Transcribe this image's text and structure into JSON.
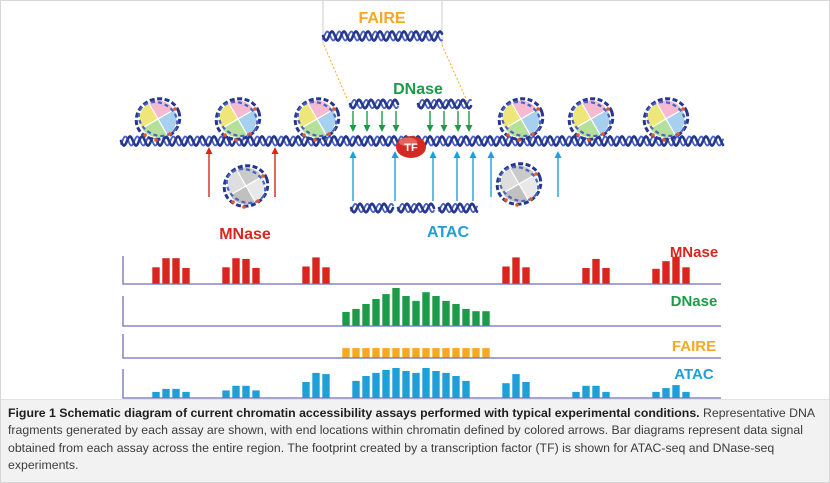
{
  "diagram": {
    "faire_label": "FAIRE",
    "dnase_label": "DNase",
    "mnase_label": "MNase",
    "atac_label": "ATAC",
    "tf_label": "TF"
  },
  "colors": {
    "dna": "#26378e",
    "dna_light": "#4a62c2",
    "tf": "#d42a1f",
    "axis": "#6f6fb6",
    "connector": "#f7a823",
    "histone": [
      "#efe67a",
      "#f5b9d0",
      "#a7cfee",
      "#b5e09c"
    ],
    "evicted_histone": [
      "#dedede",
      "#cacaca",
      "#e8e8e8",
      "#c0c0c0"
    ],
    "histone_dots": "#e3582d"
  },
  "chart_data": {
    "type": "bar",
    "xlim": [
      0,
      59
    ],
    "ylim": [
      0,
      10
    ],
    "grid": false,
    "legend": "right",
    "series": [
      {
        "name": "MNase",
        "color": "#d9251d",
        "x": [
          3,
          4,
          5,
          6,
          10,
          11,
          12,
          13,
          18,
          19,
          20,
          38,
          39,
          40,
          46,
          47,
          48,
          53,
          54,
          55,
          56
        ],
        "values": [
          4.4,
          6.8,
          6.8,
          4.2,
          4.4,
          6.8,
          6.6,
          4.2,
          4.6,
          7.0,
          4.4,
          4.6,
          7.0,
          4.4,
          4.2,
          6.6,
          4.2,
          4.0,
          6.0,
          7.2,
          4.4
        ]
      },
      {
        "name": "DNase",
        "color": "#1c9c48",
        "x": [
          22,
          23,
          24,
          25,
          26,
          27,
          28,
          29,
          30,
          31,
          32,
          33,
          34,
          35,
          36
        ],
        "values": [
          3.7,
          4.5,
          5.8,
          7.1,
          8.4,
          10.0,
          7.9,
          6.6,
          8.9,
          7.9,
          6.6,
          5.8,
          4.5,
          3.9,
          3.9
        ]
      },
      {
        "name": "FAIRE",
        "color": "#f7a823",
        "x": [
          22,
          23,
          24,
          25,
          26,
          27,
          28,
          29,
          30,
          31,
          32,
          33,
          34,
          35,
          36
        ],
        "values": [
          2.6,
          2.6,
          2.6,
          2.6,
          2.6,
          2.6,
          2.6,
          2.6,
          2.6,
          2.6,
          2.6,
          2.6,
          2.6,
          2.6,
          2.6
        ]
      },
      {
        "name": "ATAC",
        "color": "#1f9fd8",
        "x": [
          3,
          4,
          5,
          6,
          10,
          11,
          12,
          13,
          18,
          19,
          20,
          23,
          24,
          25,
          26,
          27,
          28,
          29,
          30,
          31,
          32,
          33,
          34,
          38,
          39,
          40,
          45,
          46,
          47,
          48,
          53,
          54,
          55,
          56
        ],
        "values": [
          1.6,
          2.4,
          2.4,
          1.6,
          2.0,
          3.2,
          3.2,
          2.0,
          4.2,
          6.6,
          6.3,
          4.5,
          5.8,
          6.6,
          7.4,
          7.9,
          7.1,
          6.6,
          7.9,
          7.1,
          6.6,
          5.8,
          4.5,
          3.9,
          6.3,
          4.2,
          1.6,
          3.2,
          3.2,
          1.6,
          1.6,
          2.6,
          3.4,
          1.6
        ]
      }
    ]
  },
  "caption": {
    "title": "Figure 1 Schematic diagram of current chromatin accessibility assays performed with typical experimental conditions.",
    "body": "Representative DNA fragments generated by each assay are shown, with end locations within chromatin defined by colored arrows. Bar diagrams represent data signal obtained from each assay across the entire region. The footprint created by a transcription factor (TF) is shown for ATAC-seq and DNase-seq experiments."
  }
}
